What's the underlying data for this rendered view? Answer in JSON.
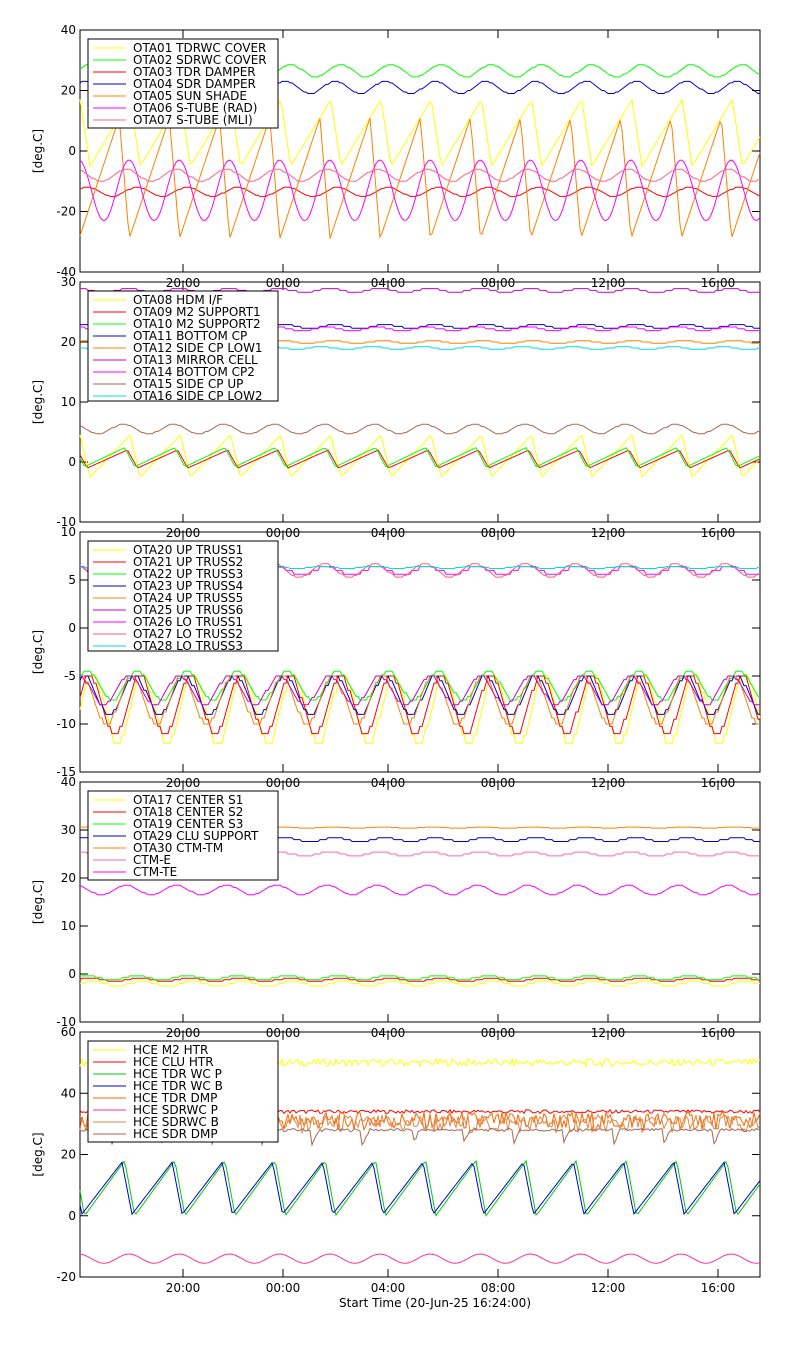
{
  "page": {
    "xlabel": "Start Time (20-Jun-25 16:24:00)",
    "time_ticks": [
      "20:00",
      "00:00",
      "04:00",
      "08:00",
      "12:00",
      "16:00"
    ]
  },
  "chart_data": [
    {
      "type": "line",
      "ylabel": "[deg.C]",
      "ylim": [
        -40,
        40
      ],
      "yticks": [
        -40,
        -20,
        0,
        20,
        40
      ],
      "legend_position": "top-left",
      "series": [
        {
          "name": "OTA01 TDRWC COVER",
          "color": "#ffff00",
          "wave": "saw",
          "base": 6,
          "amp": 11,
          "period": 1.83
        },
        {
          "name": "OTA02 SDRWC COVER",
          "color": "#00ff00",
          "wave": "step",
          "base": 26.5,
          "amp": 2,
          "period": 1.83
        },
        {
          "name": "OTA03 TDR DAMPER",
          "color": "#ff0000",
          "wave": "step",
          "base": -13.5,
          "amp": 1.5,
          "period": 1.83
        },
        {
          "name": "OTA04 SDR DAMPER",
          "color": "#0000cc",
          "wave": "step",
          "base": 21,
          "amp": 2,
          "period": 1.83
        },
        {
          "name": "OTA05 SUN SHADE",
          "color": "#ff8000",
          "wave": "saw",
          "base": -9,
          "amp": 20,
          "period": 1.83
        },
        {
          "name": "OTA06 S-TUBE (RAD)",
          "color": "#ff00ff",
          "wave": "sine",
          "base": -13,
          "amp": 10,
          "period": 1.83
        },
        {
          "name": "OTA07 S-TUBE (MLI)",
          "color": "#ff6688",
          "wave": "step",
          "base": -8,
          "amp": 2,
          "period": 1.83
        }
      ]
    },
    {
      "type": "line",
      "ylabel": "[deg.C]",
      "ylim": [
        -10,
        30
      ],
      "yticks": [
        -10,
        0,
        10,
        20,
        30
      ],
      "legend_position": "top-left",
      "series": [
        {
          "name": "OTA08 HDM I/F",
          "color": "#ffff00",
          "wave": "saw",
          "base": 1,
          "amp": 3.5,
          "period": 1.83
        },
        {
          "name": "OTA09 M2 SUPPORT1",
          "color": "#ff0000",
          "wave": "saw",
          "base": 0.5,
          "amp": 1.5,
          "period": 1.83
        },
        {
          "name": "OTA10 M2 SUPPORT2",
          "color": "#00ff00",
          "wave": "saw",
          "base": 0.8,
          "amp": 1.6,
          "period": 1.83
        },
        {
          "name": "OTA11 BOTTOM CP",
          "color": "#0000cc",
          "wave": "flat",
          "base": 22.6,
          "amp": 0.3,
          "period": 1.83
        },
        {
          "name": "OTA12 SIDE CP LOW1",
          "color": "#ff8000",
          "wave": "flat",
          "base": 20,
          "amp": 0.2,
          "period": 1.83
        },
        {
          "name": "OTA13 MIRROR CELL",
          "color": "#cc00cc",
          "wave": "flat",
          "base": 28.6,
          "amp": 0.3,
          "period": 1.83
        },
        {
          "name": "OTA14 BOTTOM CP2",
          "color": "#ff00ff",
          "wave": "flat",
          "base": 22.2,
          "amp": 0.3,
          "period": 1.83
        },
        {
          "name": "OTA15 SIDE CP UP",
          "color": "#aa6655",
          "wave": "step",
          "base": 5.5,
          "amp": 0.8,
          "period": 1.83
        },
        {
          "name": "OTA16 SIDE CP LOW2",
          "color": "#00dddd",
          "wave": "flat",
          "base": 19,
          "amp": 0.2,
          "period": 1.83
        }
      ]
    },
    {
      "type": "line",
      "ylabel": "[deg.C]",
      "ylim": [
        -15,
        10
      ],
      "yticks": [
        -15,
        -10,
        -5,
        0,
        5,
        10
      ],
      "legend_position": "top-left",
      "series": [
        {
          "name": "OTA20 UP TRUSS1",
          "color": "#ffff00",
          "wave": "step",
          "base": -8.5,
          "amp": 3.5,
          "period": 1.83
        },
        {
          "name": "OTA21 UP TRUSS2",
          "color": "#ff0000",
          "wave": "step",
          "base": -8,
          "amp": 3,
          "period": 1.83
        },
        {
          "name": "OTA22 UP TRUSS3",
          "color": "#00ff00",
          "wave": "step",
          "base": -6,
          "amp": 1.5,
          "period": 1.83
        },
        {
          "name": "OTA23 UP TRUSS4",
          "color": "#0000cc",
          "wave": "step",
          "base": -7,
          "amp": 2,
          "period": 1.83
        },
        {
          "name": "OTA24 UP TRUSS5",
          "color": "#ff8000",
          "wave": "step",
          "base": -7.5,
          "amp": 2.5,
          "period": 1.83
        },
        {
          "name": "OTA25 UP TRUSS6",
          "color": "#cc00cc",
          "wave": "step",
          "base": -6.5,
          "amp": 1.5,
          "period": 1.83
        },
        {
          "name": "OTA26 LO TRUSS1",
          "color": "#ff00ff",
          "wave": "flat",
          "base": 6,
          "amp": 0.4,
          "period": 1.83
        },
        {
          "name": "OTA27 LO TRUSS2",
          "color": "#ee6677",
          "wave": "step",
          "base": 6,
          "amp": 0.7,
          "period": 1.83
        },
        {
          "name": "OTA28 LO TRUSS3",
          "color": "#00dddd",
          "wave": "flat",
          "base": 6.3,
          "amp": 0.1,
          "period": 1.83
        }
      ]
    },
    {
      "type": "line",
      "ylabel": "[deg.C]",
      "ylim": [
        -10,
        40
      ],
      "yticks": [
        -10,
        0,
        10,
        20,
        30,
        40
      ],
      "legend_position": "top-left",
      "series": [
        {
          "name": "OTA17 CENTER S1",
          "color": "#ffff00",
          "wave": "flat",
          "base": -2,
          "amp": 0.5,
          "period": 1.83
        },
        {
          "name": "OTA18 CENTER S2",
          "color": "#ff0000",
          "wave": "flat",
          "base": -1.2,
          "amp": 0.3,
          "period": 1.83
        },
        {
          "name": "OTA19 CENTER S3",
          "color": "#00ff00",
          "wave": "flat",
          "base": -0.8,
          "amp": 0.4,
          "period": 1.83
        },
        {
          "name": "OTA29 CLU SUPPORT",
          "color": "#0000cc",
          "wave": "flat",
          "base": 28,
          "amp": 0.4,
          "period": 1.83
        },
        {
          "name": "OTA30 CTM-TM",
          "color": "#ff8000",
          "wave": "flat",
          "base": 30.5,
          "amp": 0.1,
          "period": 1.83
        },
        {
          "name": "CTM-E",
          "color": "#ff66aa",
          "wave": "flat",
          "base": 25,
          "amp": 0.4,
          "period": 1.83
        },
        {
          "name": "CTM-TE",
          "color": "#ff00ff",
          "wave": "step",
          "base": 17.5,
          "amp": 1,
          "period": 1.83
        }
      ]
    },
    {
      "type": "line",
      "ylabel": "[deg.C]",
      "ylim": [
        -20,
        60
      ],
      "yticks": [
        -20,
        0,
        20,
        40,
        60
      ],
      "legend_position": "top-left",
      "series": [
        {
          "name": "HCE M2 HTR",
          "color": "#ffff00",
          "wave": "noise",
          "base": 50,
          "amp": 1.2,
          "period": 1.83
        },
        {
          "name": "HCE CLU HTR",
          "color": "#ff0000",
          "wave": "noise",
          "base": 34,
          "amp": 0.6,
          "period": 1.83
        },
        {
          "name": "HCE TDR WC P",
          "color": "#00cc00",
          "wave": "saw",
          "base": 9,
          "amp": 9,
          "period": 1.83
        },
        {
          "name": "HCE TDR WC B",
          "color": "#0000cc",
          "wave": "saw",
          "base": 9,
          "amp": 8.5,
          "period": 1.83
        },
        {
          "name": "HCE TDR DMP",
          "color": "#ff6600",
          "wave": "noise",
          "base": 31,
          "amp": 3,
          "period": 1.83
        },
        {
          "name": "HCE SDRWC P",
          "color": "#ff3399",
          "wave": "sine",
          "base": -14,
          "amp": 1.5,
          "period": 1.83
        },
        {
          "name": "HCE SDRWC B",
          "color": "#dd8844",
          "wave": "noise",
          "base": 30,
          "amp": 3,
          "period": 1.83
        },
        {
          "name": "HCE SDR DMP",
          "color": "#aa6655",
          "wave": "dip",
          "base": 28,
          "amp": 5,
          "period": 1.83
        }
      ]
    }
  ]
}
